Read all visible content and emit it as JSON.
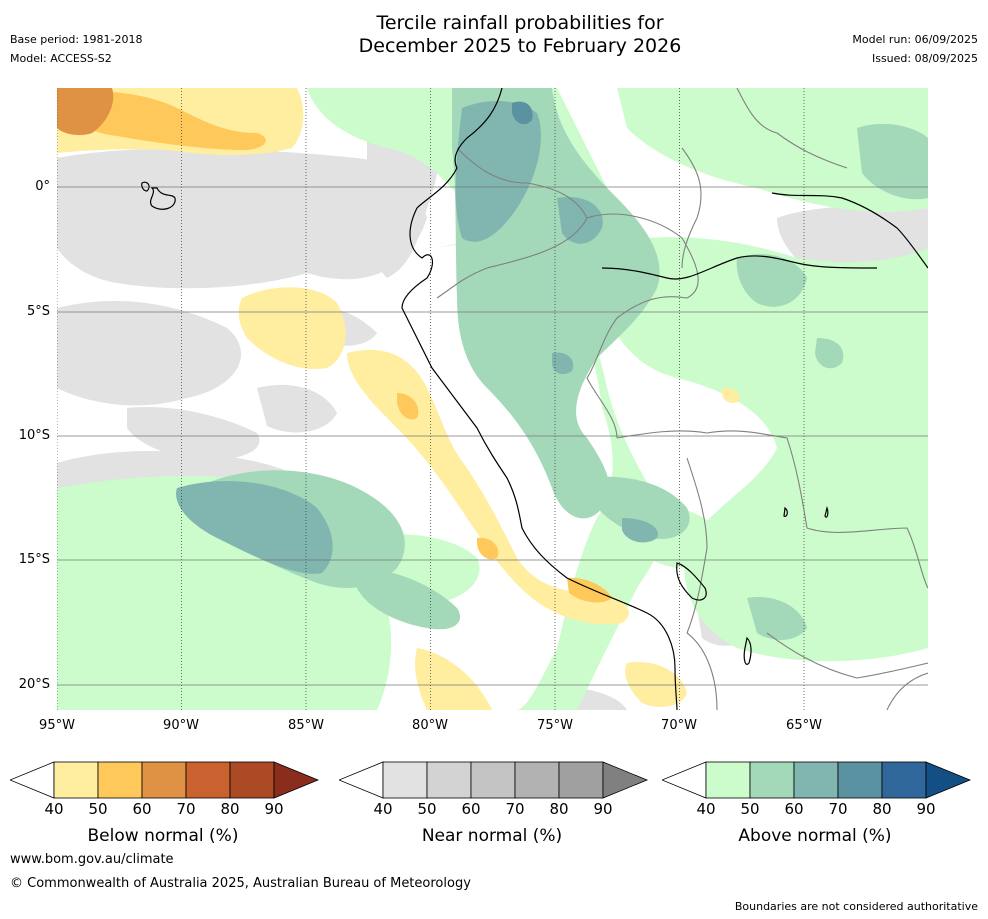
{
  "header": {
    "title_line1": "Tercile rainfall probabilities for",
    "title_line2": "December 2025 to February 2026",
    "base_period": "Base period: 1981-2018",
    "model": "Model: ACCESS-S2",
    "model_run": "Model run: 06/09/2025",
    "issued": "Issued: 08/09/2025"
  },
  "map": {
    "lon_labels": [
      "95°W",
      "90°W",
      "85°W",
      "80°W",
      "75°W",
      "70°W",
      "65°W"
    ],
    "lat_labels": [
      "0°",
      "5°S",
      "10°S",
      "15°S",
      "20°S"
    ]
  },
  "colorbars": [
    {
      "label": "Below normal (%)",
      "ticks": [
        "40",
        "50",
        "60",
        "70",
        "80",
        "90"
      ],
      "colors": [
        "#ffeda0",
        "#fec95a",
        "#e09244",
        "#c9622f",
        "#ad4a26",
        "#8a2d1c"
      ]
    },
    {
      "label": "Near normal (%)",
      "ticks": [
        "40",
        "50",
        "60",
        "70",
        "80",
        "90"
      ],
      "colors": [
        "#e2e2e2",
        "#d3d3d3",
        "#c4c4c4",
        "#b2b2b2",
        "#a0a0a0",
        "#808080"
      ]
    },
    {
      "label": "Above normal (%)",
      "ticks": [
        "40",
        "50",
        "60",
        "70",
        "80",
        "90"
      ],
      "colors": [
        "#ccfccc",
        "#a3d9b9",
        "#80b6af",
        "#5b92a2",
        "#31689b",
        "#134f84"
      ]
    }
  ],
  "footer": {
    "website": "www.bom.gov.au/climate",
    "copyright": "© Commonwealth of Australia 2025, Australian Bureau of Meteorology",
    "disclaimer": "Boundaries are not considered authoritative"
  }
}
